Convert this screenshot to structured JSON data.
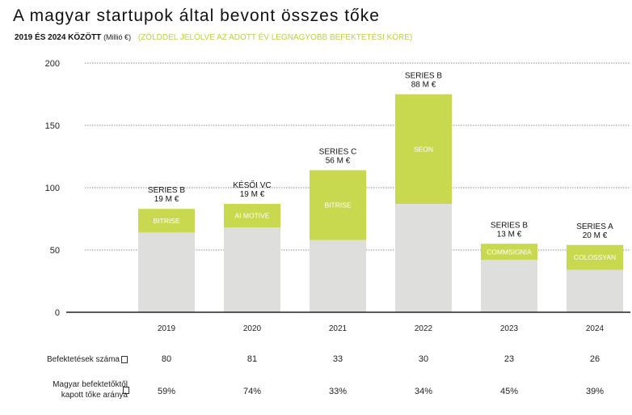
{
  "title": "A magyar startupok által bevont összes tőke",
  "subtitle": {
    "main": "2019 ÉS 2024 KÖZÖTT",
    "unit": "(Millió €)",
    "note": "(ZÖLDDEL JELÖLVE AZ ADOTT ÉV LEGNAGYOBB BEFEKTETÉSI KÖRE)"
  },
  "colors": {
    "total": "#dededd",
    "largest_round": "#c8d94f",
    "grid": "#8a8a8a",
    "axis": "#222222"
  },
  "chart_data": {
    "type": "bar",
    "stacked": true,
    "categories": [
      "2019",
      "2020",
      "2021",
      "2022",
      "2023",
      "2024"
    ],
    "ylim": [
      0,
      200
    ],
    "yticks": [
      "0",
      "50",
      "100",
      "150",
      "200"
    ],
    "grid": true,
    "series": [
      {
        "values": [
          64,
          68,
          58,
          87,
          42,
          34
        ]
      },
      {
        "values": [
          19,
          19,
          56,
          88,
          13,
          20
        ]
      }
    ],
    "segment_labels": [
      "BITRISE",
      "AI MOTIVE",
      "BITRISE",
      "SEON",
      "COMMSIGNIA",
      "COLOSSYAN"
    ],
    "round_labels": [
      "SERIES B",
      "KÉSŐI VC",
      "SERIES C",
      "SERIES B",
      "SERIES B",
      "SERIES A"
    ],
    "amount_labels": [
      "19 M €",
      "19 M €",
      "56 M €",
      "88 M €",
      "13 M €",
      "20 M €"
    ]
  },
  "table": {
    "rows": [
      {
        "label": "Befektetések száma",
        "values": [
          "80",
          "81",
          "33",
          "30",
          "23",
          "26"
        ]
      },
      {
        "label_line1": "Magyar befektetőktől",
        "label_line2": "kapott tőke aránya",
        "values": [
          "59%",
          "74%",
          "33%",
          "34%",
          "45%",
          "39%"
        ]
      }
    ]
  }
}
